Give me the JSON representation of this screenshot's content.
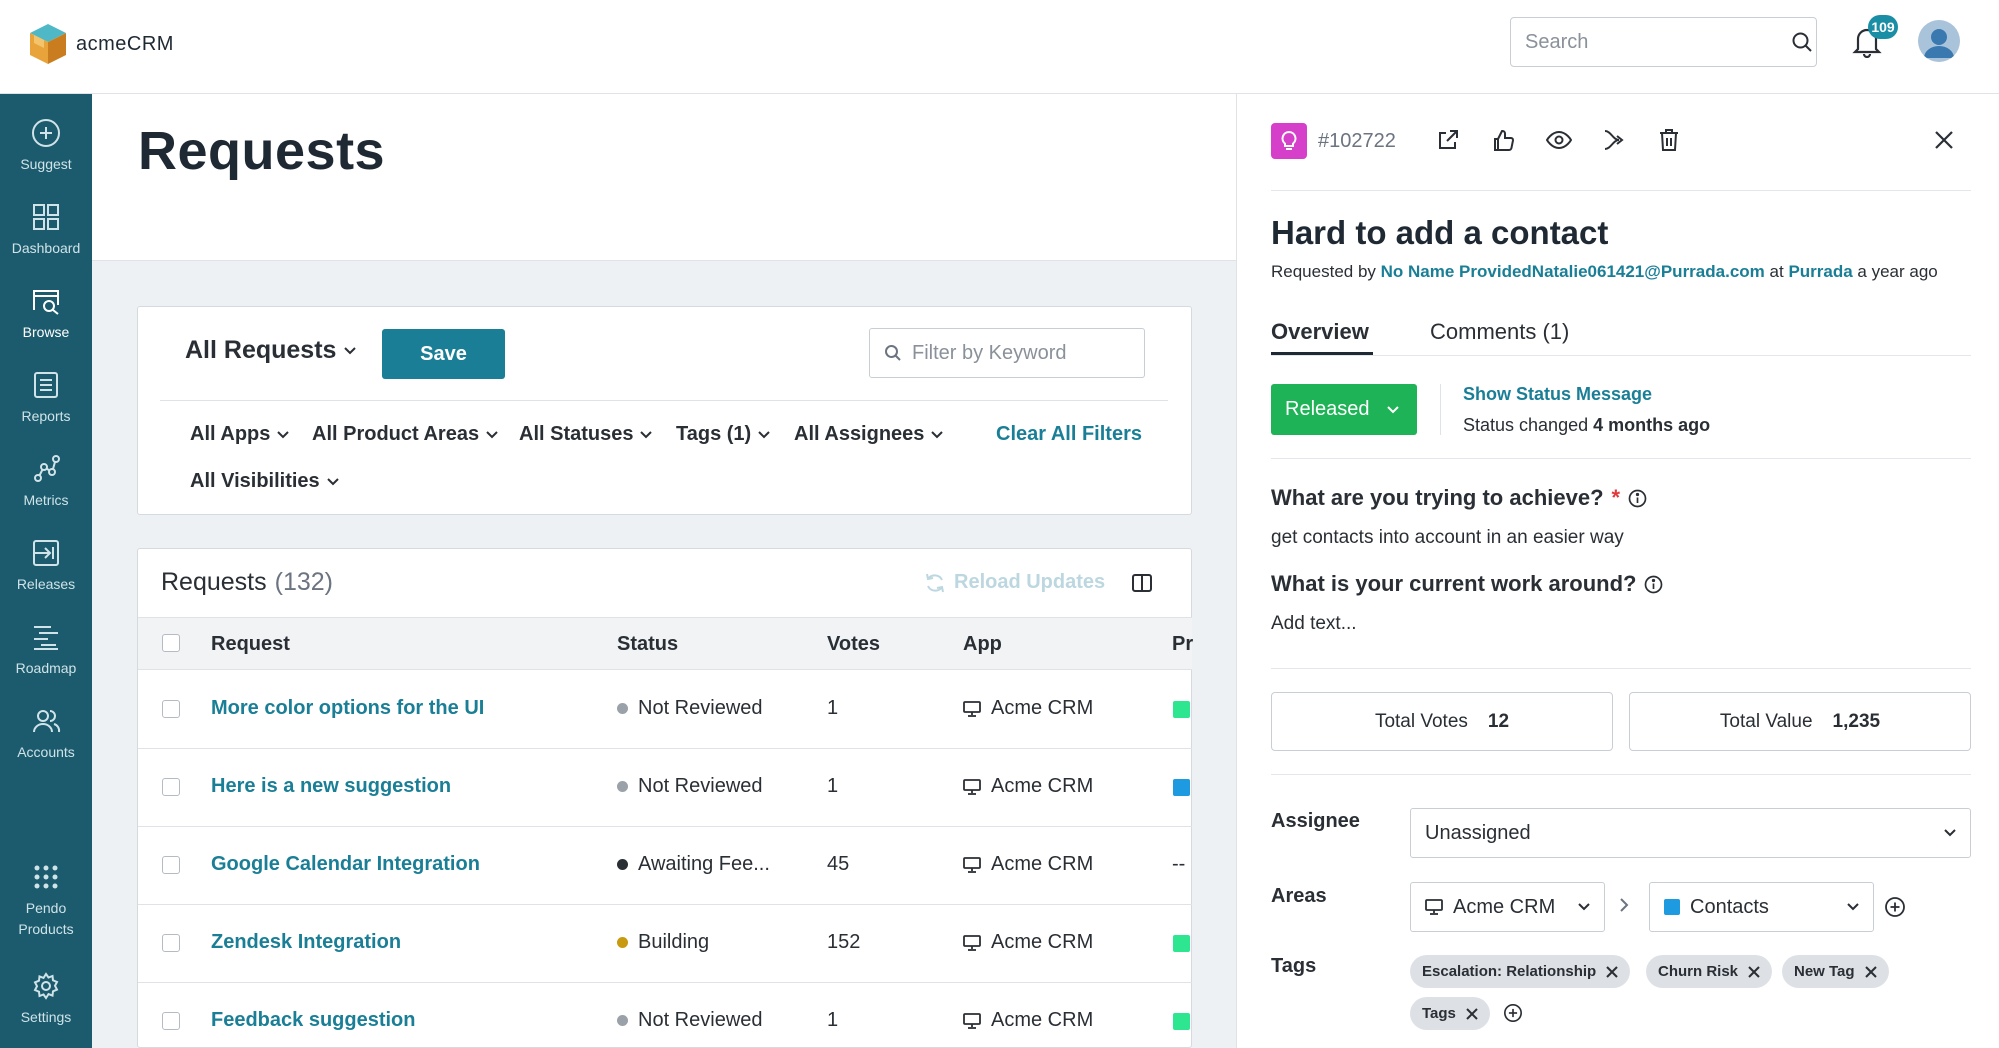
{
  "app": {
    "logo_text": "acmeCRM"
  },
  "header": {
    "search_placeholder": "Search",
    "notification_count": "109"
  },
  "sidebar": {
    "items": [
      {
        "label": "Suggest",
        "icon": "plus-circle-icon"
      },
      {
        "label": "Dashboard",
        "icon": "grid-icon"
      },
      {
        "label": "Browse",
        "icon": "browse-icon"
      },
      {
        "label": "Reports",
        "icon": "reports-icon"
      },
      {
        "label": "Metrics",
        "icon": "metrics-icon"
      },
      {
        "label": "Releases",
        "icon": "releases-icon"
      },
      {
        "label": "Roadmap",
        "icon": "roadmap-icon"
      },
      {
        "label": "Accounts",
        "icon": "accounts-icon"
      },
      {
        "label": "Pendo\nProducts",
        "label_line1": "Pendo",
        "label_line2": "Products",
        "icon": "apps-grid-icon"
      },
      {
        "label": "Settings",
        "icon": "gear-icon"
      }
    ]
  },
  "main": {
    "title": "Requests",
    "view_name": "All Requests",
    "save_label": "Save",
    "keyword_placeholder": "Filter by Keyword",
    "filters": [
      "All Apps",
      "All Product Areas",
      "All Statuses",
      "Tags (1)",
      "All Assignees",
      "All Visibilities"
    ],
    "clear_filters": "Clear All Filters",
    "table": {
      "title": "Requests",
      "count": "(132)",
      "reload_label": "Reload Updates",
      "columns": [
        "Request",
        "Status",
        "Votes",
        "App",
        "Pr"
      ],
      "rows": [
        {
          "request": "More color options for the UI",
          "status": "Not Reviewed",
          "status_color": "#9aa1a9",
          "votes": "1",
          "app": "Acme CRM",
          "priority_color": "#2ee68f",
          "priority_text": ""
        },
        {
          "request": "Here is a new suggestion",
          "status": "Not Reviewed",
          "status_color": "#9aa1a9",
          "votes": "1",
          "app": "Acme CRM",
          "priority_color": "#1d9ae0",
          "priority_text": ""
        },
        {
          "request": "Google Calendar Integration",
          "status": "Awaiting Fee...",
          "status_color": "#2a2f35",
          "votes": "45",
          "app": "Acme CRM",
          "priority_color": "",
          "priority_text": "--"
        },
        {
          "request": "Zendesk Integration",
          "status": "Building",
          "status_color": "#c79a10",
          "votes": "152",
          "app": "Acme CRM",
          "priority_color": "#2ee68f",
          "priority_text": ""
        },
        {
          "request": "Feedback suggestion",
          "status": "Not Reviewed",
          "status_color": "#9aa1a9",
          "votes": "1",
          "app": "Acme CRM",
          "priority_color": "#2ee68f",
          "priority_text": ""
        }
      ]
    }
  },
  "panel": {
    "id": "#102722",
    "title": "Hard to add a contact",
    "requested_by_prefix": "Requested by",
    "requester": "No Name ProvidedNatalie061421@Purrada.com",
    "at": "at",
    "company": "Purrada",
    "time_ago": "a year ago",
    "tabs": [
      "Overview",
      "Comments (1)"
    ],
    "status": "Released",
    "show_status_message": "Show Status Message",
    "status_changed_prefix": "Status changed",
    "status_changed_when": "4 months ago",
    "q1": "What are you trying to achieve?",
    "q1_required": "*",
    "a1": "get contacts into account in an easier way",
    "q2": "What is your current work around?",
    "a2": "Add text...",
    "total_votes_label": "Total Votes",
    "total_votes": "12",
    "total_value_label": "Total Value",
    "total_value": "1,235",
    "assignee_label": "Assignee",
    "assignee": "Unassigned",
    "areas_label": "Areas",
    "area_app": "Acme CRM",
    "area_product": "Contacts",
    "tags_label": "Tags",
    "tags": [
      "Escalation: Relationship",
      "Churn Risk",
      "New Tag",
      "Tags"
    ]
  },
  "colors": {
    "sidebar": "#1c5b6d",
    "accent": "#1a7f96",
    "released": "#1fb357",
    "idea": "#d63fc9"
  }
}
